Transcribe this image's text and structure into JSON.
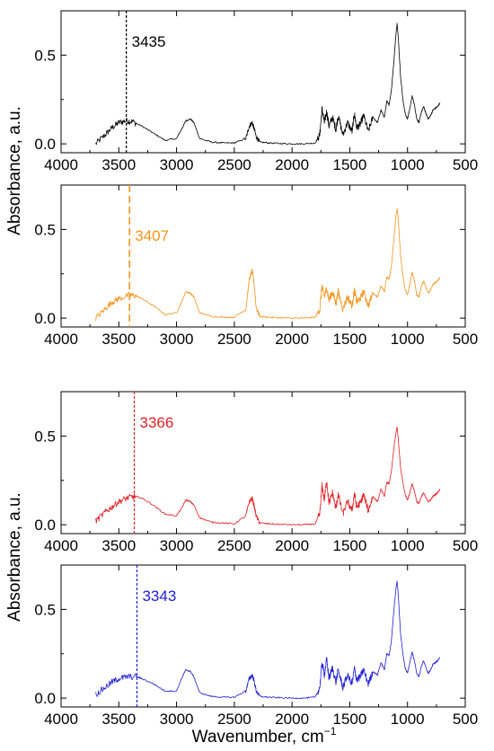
{
  "chart_data": [
    {
      "type": "line",
      "color": "#000000",
      "peak_label": "3435",
      "peak_x": 3435,
      "xlim": [
        4000,
        500
      ],
      "ylim": [
        -0.05,
        0.75
      ],
      "xticks": [
        4000,
        3500,
        3000,
        2500,
        2000,
        1500,
        1000,
        500
      ],
      "xtick_labels": [
        "4000",
        "3500",
        "3000",
        "2500",
        "2000",
        "1500",
        "1000",
        "500"
      ],
      "yticks": [
        0.0,
        0.5
      ],
      "ytick_labels": [
        "0.0",
        "0.5"
      ],
      "x": [
        3700,
        3620,
        3560,
        3500,
        3435,
        3380,
        3300,
        3200,
        3100,
        3000,
        2950,
        2920,
        2880,
        2850,
        2800,
        2700,
        2600,
        2500,
        2400,
        2370,
        2345,
        2330,
        2310,
        2280,
        2200,
        2100,
        2000,
        1900,
        1800,
        1760,
        1740,
        1720,
        1700,
        1680,
        1650,
        1620,
        1600,
        1560,
        1520,
        1480,
        1460,
        1440,
        1410,
        1380,
        1340,
        1300,
        1260,
        1230,
        1200,
        1180,
        1160,
        1140,
        1120,
        1100,
        1090,
        1080,
        1060,
        1040,
        1020,
        1000,
        980,
        960,
        940,
        920,
        900,
        880,
        860,
        840,
        820,
        800,
        780,
        760,
        740,
        720
      ],
      "y": [
        0.0,
        0.05,
        0.09,
        0.12,
        0.13,
        0.125,
        0.1,
        0.06,
        0.02,
        0.03,
        0.09,
        0.13,
        0.14,
        0.12,
        0.03,
        0.01,
        0.005,
        0.005,
        0.03,
        0.1,
        0.12,
        0.09,
        0.04,
        0.01,
        0.005,
        0.002,
        0.0,
        0.0,
        0.005,
        0.05,
        0.2,
        0.12,
        0.18,
        0.1,
        0.15,
        0.08,
        0.16,
        0.05,
        0.12,
        0.07,
        0.17,
        0.09,
        0.11,
        0.16,
        0.07,
        0.15,
        0.12,
        0.19,
        0.15,
        0.24,
        0.22,
        0.3,
        0.45,
        0.62,
        0.68,
        0.6,
        0.38,
        0.25,
        0.17,
        0.14,
        0.2,
        0.27,
        0.22,
        0.14,
        0.12,
        0.18,
        0.21,
        0.17,
        0.14,
        0.16,
        0.19,
        0.2,
        0.21,
        0.23
      ]
    },
    {
      "type": "line",
      "color": "#f7941d",
      "peak_label": "3407",
      "peak_x": 3407,
      "xlim": [
        4000,
        500
      ],
      "ylim": [
        -0.05,
        0.75
      ],
      "xticks": [
        4000,
        3500,
        3000,
        2500,
        2000,
        1500,
        1000,
        500
      ],
      "xtick_labels": [
        "4000",
        "3500",
        "3000",
        "2500",
        "2000",
        "1500",
        "1000",
        "500"
      ],
      "yticks": [
        0.0,
        0.5
      ],
      "ytick_labels": [
        "0.0",
        "0.5"
      ],
      "x": [
        3700,
        3620,
        3560,
        3500,
        3407,
        3350,
        3300,
        3200,
        3100,
        3000,
        2950,
        2920,
        2880,
        2850,
        2800,
        2700,
        2600,
        2500,
        2400,
        2370,
        2345,
        2330,
        2310,
        2280,
        2200,
        2100,
        2000,
        1900,
        1800,
        1760,
        1740,
        1720,
        1700,
        1680,
        1650,
        1620,
        1600,
        1560,
        1520,
        1480,
        1460,
        1440,
        1410,
        1380,
        1340,
        1300,
        1260,
        1230,
        1200,
        1180,
        1160,
        1140,
        1120,
        1100,
        1090,
        1080,
        1060,
        1040,
        1020,
        1000,
        980,
        960,
        940,
        920,
        900,
        880,
        860,
        840,
        820,
        800,
        780,
        760,
        740,
        720
      ],
      "y": [
        0.0,
        0.05,
        0.09,
        0.11,
        0.13,
        0.125,
        0.11,
        0.07,
        0.02,
        0.03,
        0.1,
        0.15,
        0.14,
        0.12,
        0.03,
        0.01,
        0.005,
        0.005,
        0.05,
        0.22,
        0.27,
        0.2,
        0.06,
        0.01,
        0.005,
        0.002,
        0.0,
        0.0,
        0.005,
        0.05,
        0.18,
        0.12,
        0.17,
        0.1,
        0.15,
        0.08,
        0.15,
        0.05,
        0.12,
        0.07,
        0.16,
        0.09,
        0.11,
        0.15,
        0.07,
        0.14,
        0.12,
        0.18,
        0.15,
        0.23,
        0.22,
        0.29,
        0.43,
        0.58,
        0.62,
        0.55,
        0.35,
        0.24,
        0.16,
        0.13,
        0.19,
        0.26,
        0.21,
        0.13,
        0.12,
        0.18,
        0.21,
        0.17,
        0.14,
        0.16,
        0.19,
        0.2,
        0.21,
        0.23
      ]
    },
    {
      "type": "line",
      "color": "#e31e24",
      "peak_label": "3366",
      "peak_x": 3366,
      "xlim": [
        4000,
        500
      ],
      "ylim": [
        -0.05,
        0.75
      ],
      "xticks": [
        4000,
        3500,
        3000,
        2500,
        2000,
        1500,
        1000,
        500
      ],
      "xtick_labels": [
        "4000",
        "3500",
        "3000",
        "2500",
        "2000",
        "1500",
        "1000",
        "500"
      ],
      "yticks": [
        0.0,
        0.5
      ],
      "ytick_labels": [
        "0.0",
        "0.5"
      ],
      "x": [
        3700,
        3620,
        3560,
        3500,
        3430,
        3366,
        3300,
        3200,
        3100,
        3000,
        2950,
        2920,
        2880,
        2850,
        2800,
        2700,
        2600,
        2500,
        2400,
        2370,
        2345,
        2330,
        2310,
        2280,
        2200,
        2100,
        2000,
        1900,
        1800,
        1760,
        1740,
        1720,
        1700,
        1680,
        1650,
        1620,
        1600,
        1560,
        1520,
        1480,
        1460,
        1440,
        1410,
        1380,
        1340,
        1300,
        1260,
        1230,
        1200,
        1180,
        1160,
        1140,
        1120,
        1100,
        1090,
        1080,
        1060,
        1040,
        1020,
        1000,
        980,
        960,
        940,
        920,
        900,
        880,
        860,
        840,
        820,
        800,
        780,
        760,
        740,
        720
      ],
      "y": [
        0.02,
        0.07,
        0.1,
        0.13,
        0.15,
        0.16,
        0.15,
        0.11,
        0.06,
        0.05,
        0.1,
        0.14,
        0.13,
        0.11,
        0.04,
        0.015,
        0.01,
        0.005,
        0.05,
        0.13,
        0.15,
        0.11,
        0.05,
        0.01,
        0.005,
        0.002,
        0.0,
        0.0,
        0.005,
        0.06,
        0.22,
        0.14,
        0.25,
        0.12,
        0.18,
        0.09,
        0.17,
        0.06,
        0.13,
        0.08,
        0.18,
        0.1,
        0.12,
        0.17,
        0.08,
        0.16,
        0.13,
        0.2,
        0.16,
        0.24,
        0.23,
        0.3,
        0.42,
        0.52,
        0.55,
        0.48,
        0.32,
        0.24,
        0.17,
        0.14,
        0.18,
        0.23,
        0.19,
        0.13,
        0.12,
        0.16,
        0.18,
        0.15,
        0.13,
        0.14,
        0.16,
        0.17,
        0.18,
        0.2
      ]
    },
    {
      "type": "line",
      "color": "#1f1fd6",
      "peak_label": "3343",
      "peak_x": 3343,
      "xlim": [
        4000,
        500
      ],
      "ylim": [
        -0.05,
        0.75
      ],
      "xticks": [
        4000,
        3500,
        3000,
        2500,
        2000,
        1500,
        1000,
        500
      ],
      "xtick_labels": [
        "4000",
        "3500",
        "3000",
        "2500",
        "2000",
        "1500",
        "1000",
        "500"
      ],
      "yticks": [
        0.0,
        0.5
      ],
      "ytick_labels": [
        "0.0",
        "0.5"
      ],
      "x": [
        3700,
        3620,
        3560,
        3500,
        3430,
        3343,
        3300,
        3200,
        3100,
        3000,
        2950,
        2920,
        2880,
        2850,
        2800,
        2700,
        2600,
        2500,
        2400,
        2370,
        2345,
        2330,
        2310,
        2280,
        2200,
        2100,
        2000,
        1900,
        1800,
        1760,
        1740,
        1720,
        1700,
        1680,
        1650,
        1620,
        1600,
        1560,
        1520,
        1480,
        1460,
        1440,
        1410,
        1380,
        1340,
        1300,
        1260,
        1230,
        1200,
        1180,
        1160,
        1140,
        1120,
        1100,
        1090,
        1080,
        1060,
        1040,
        1020,
        1000,
        980,
        960,
        940,
        920,
        900,
        880,
        860,
        840,
        820,
        800,
        780,
        760,
        740,
        720
      ],
      "y": [
        0.02,
        0.06,
        0.09,
        0.11,
        0.12,
        0.12,
        0.11,
        0.08,
        0.04,
        0.04,
        0.12,
        0.16,
        0.15,
        0.12,
        0.03,
        0.01,
        0.005,
        0.005,
        0.04,
        0.11,
        0.13,
        0.1,
        0.04,
        0.01,
        0.005,
        0.002,
        0.0,
        0.0,
        0.005,
        0.06,
        0.2,
        0.13,
        0.22,
        0.11,
        0.17,
        0.09,
        0.16,
        0.06,
        0.13,
        0.08,
        0.17,
        0.1,
        0.12,
        0.16,
        0.08,
        0.15,
        0.13,
        0.2,
        0.16,
        0.25,
        0.24,
        0.32,
        0.48,
        0.62,
        0.66,
        0.58,
        0.36,
        0.25,
        0.17,
        0.14,
        0.2,
        0.26,
        0.21,
        0.14,
        0.12,
        0.18,
        0.21,
        0.17,
        0.14,
        0.16,
        0.19,
        0.2,
        0.21,
        0.23
      ]
    }
  ],
  "axis_titles": {
    "y_top": "Absorbance, a.u.",
    "y_bottom": "Absorbance, a.u.",
    "x": "Wavenumber, cm",
    "x_superscript": "−1"
  }
}
